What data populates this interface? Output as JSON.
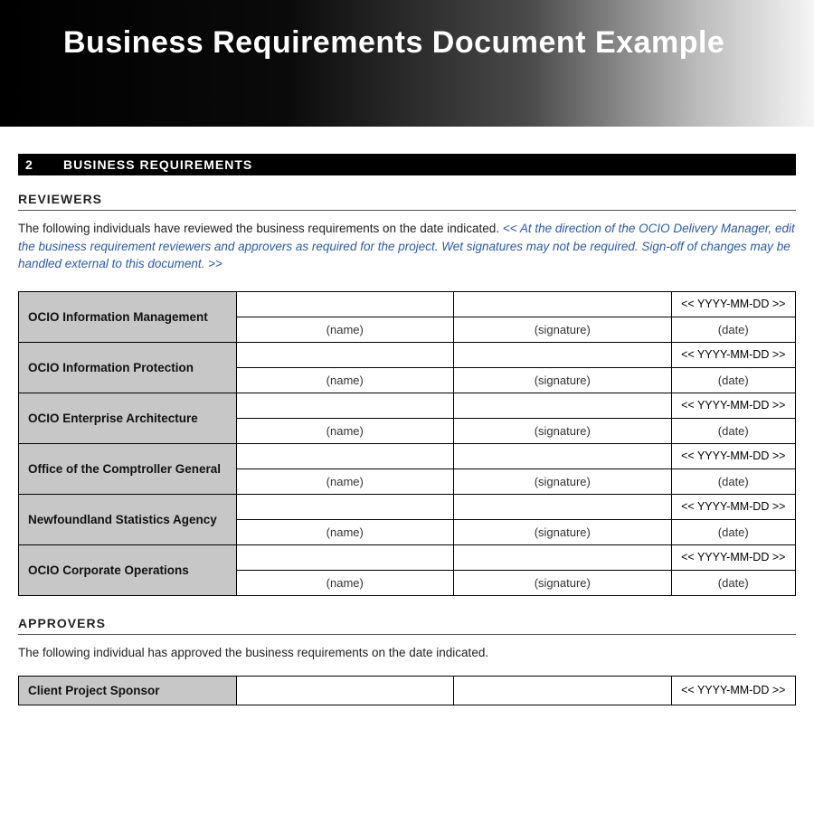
{
  "header": {
    "title": "Business Requirements Document Example"
  },
  "section": {
    "number": "2",
    "title": "BUSINESS REQUIREMENTS"
  },
  "reviewers": {
    "heading": "REVIEWERS",
    "intro_plain": "The following individuals have reviewed the business requirements on the date indicated. ",
    "intro_instruction": "<< At the direction of the OCIO Delivery Manager, edit the business requirement reviewers and approvers as required for the project. Wet signatures may not be required. Sign-off of changes may be handled external to this document. >>",
    "column_labels": {
      "name": "(name)",
      "signature": "(signature)",
      "date": "(date)"
    },
    "date_placeholder": "<< YYYY-MM-DD >>",
    "roles": [
      "OCIO Information Management",
      "OCIO Information Protection",
      "OCIO Enterprise Architecture",
      "Office of the Comptroller General",
      "Newfoundland Statistics Agency",
      "OCIO Corporate Operations"
    ]
  },
  "approvers": {
    "heading": "APPROVERS",
    "intro": "The following individual has approved the business requirements on the date indicated.",
    "role": "Client Project Sponsor",
    "date_placeholder": "<< YYYY-MM-DD >>"
  },
  "colors": {
    "banner_gradient_start": "#000000",
    "banner_gradient_end": "#f5f5f5",
    "section_bar_bg": "#000000",
    "section_bar_text": "#ffffff",
    "role_cell_bg": "#c7c7c7",
    "instruction_text": "#2a5aa8",
    "border": "#000000"
  }
}
